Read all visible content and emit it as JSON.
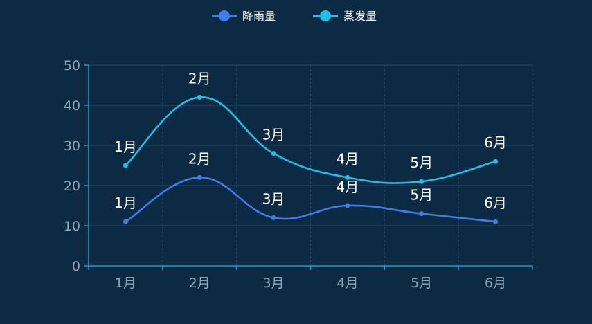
{
  "chart_data": {
    "type": "line",
    "smooth": true,
    "categories": [
      "1月",
      "2月",
      "3月",
      "4月",
      "5月",
      "6月"
    ],
    "series": [
      {
        "name": "降雨量",
        "values": [
          11,
          22,
          12,
          15,
          13,
          11
        ],
        "color": "#3f7de8"
      },
      {
        "name": "蒸发量",
        "values": [
          25,
          42,
          28,
          22,
          21,
          26
        ],
        "color": "#1bc1e6"
      }
    ],
    "ylim": [
      0,
      50
    ],
    "yticks": [
      0,
      10,
      20,
      30,
      40,
      50
    ],
    "grid": true,
    "legend_position": "top-center",
    "data_labels": "category-name"
  },
  "colors": {
    "background": "#0d2a44",
    "axis": "#1d9fc6",
    "grid": "#2a4a66",
    "tick_text": "#8fa6bb",
    "label_text": "#ffffff"
  }
}
